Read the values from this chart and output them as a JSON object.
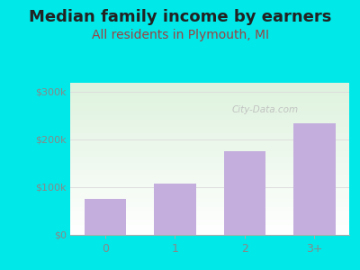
{
  "title": "Median family income by earners",
  "subtitle": "All residents in Plymouth, MI",
  "categories": [
    "0",
    "1",
    "2",
    "3+"
  ],
  "values": [
    75000,
    107000,
    175000,
    235000
  ],
  "bar_color": "#c4aedd",
  "bar_edge_color": "#c4aedd",
  "outer_bg": "#00e8e8",
  "plot_bg_top_left": "#ddf0dd",
  "plot_bg_bottom": "#ffffff",
  "yticks": [
    0,
    100000,
    200000,
    300000
  ],
  "ytick_labels": [
    "$0",
    "$100k",
    "$200k",
    "$300k"
  ],
  "ylim": [
    0,
    320000
  ],
  "title_fontsize": 13,
  "subtitle_fontsize": 10,
  "title_color": "#222222",
  "subtitle_color": "#994444",
  "tick_label_color": "#888888",
  "watermark_text": "City-Data.com",
  "watermark_color": "#bbbbbb",
  "grid_color": "#dddddd"
}
